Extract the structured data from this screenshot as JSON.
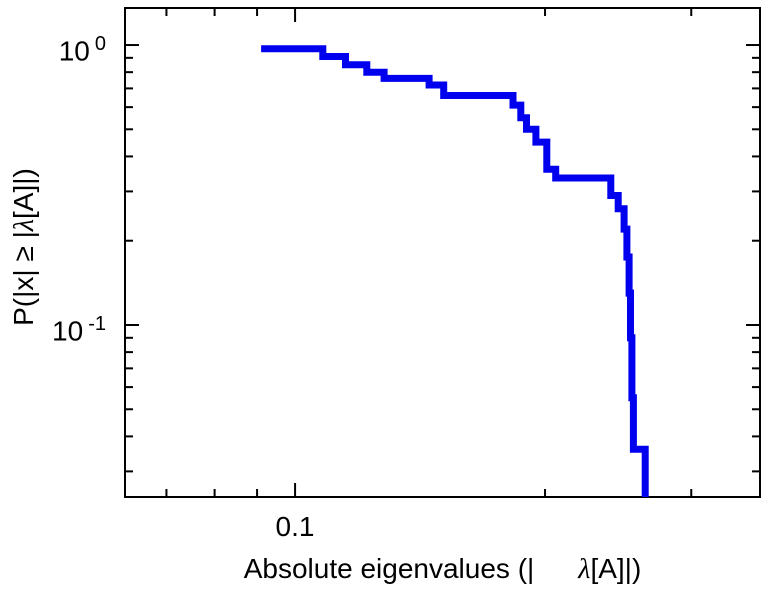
{
  "figure": {
    "background": "#ffffff"
  },
  "chart_data": {
    "type": "line",
    "subtype": "step-ccdf",
    "title": "",
    "xlabel": "Absolute eigenvalues (|λ[A]|)",
    "ylabel": "P(|x| ≥ |λ[A]|)",
    "xlabel_parts": {
      "pre": "Absolute eigenvalues (|",
      "lambda": "λ",
      "post": "[A]|)"
    },
    "ylabel_parts": {
      "pre": "P(|x| ≥ |",
      "lambda": "λ",
      "post": "[A]|)"
    },
    "log_x": true,
    "log_y": true,
    "grid": false,
    "legend": "none",
    "xlim": [
      0.0624,
      0.363
    ],
    "ylim": [
      0.0243,
      1.356
    ],
    "x_ticks": {
      "major": [
        0.1
      ],
      "major_labels": [
        "0.1"
      ],
      "minor": [
        0.07,
        0.08,
        0.09,
        0.2,
        0.3
      ]
    },
    "y_ticks": {
      "major": [
        1,
        0.1
      ],
      "major_labels": [
        {
          "base": "10",
          "exp": "0"
        },
        {
          "base": "10",
          "exp": "-1"
        }
      ],
      "minor": [
        0.9,
        0.8,
        0.7,
        0.6,
        0.5,
        0.4,
        0.3,
        0.2,
        0.09,
        0.08,
        0.07,
        0.06,
        0.05,
        0.04,
        0.03
      ]
    },
    "line_color": "#0000ee",
    "line_width": 7,
    "steps": [
      [
        0.091,
        0.97
      ],
      [
        0.108,
        0.91
      ],
      [
        0.115,
        0.85
      ],
      [
        0.122,
        0.8
      ],
      [
        0.128,
        0.76
      ],
      [
        0.145,
        0.72
      ],
      [
        0.151,
        0.66
      ],
      [
        0.183,
        0.61
      ],
      [
        0.187,
        0.55
      ],
      [
        0.19,
        0.5
      ],
      [
        0.195,
        0.45
      ],
      [
        0.201,
        0.36
      ],
      [
        0.206,
        0.335
      ],
      [
        0.24,
        0.29
      ],
      [
        0.245,
        0.26
      ],
      [
        0.249,
        0.22
      ],
      [
        0.251,
        0.175
      ],
      [
        0.2525,
        0.13
      ],
      [
        0.2535,
        0.09
      ],
      [
        0.2545,
        0.055
      ],
      [
        0.2555,
        0.036
      ],
      [
        0.264,
        0.02
      ]
    ]
  }
}
